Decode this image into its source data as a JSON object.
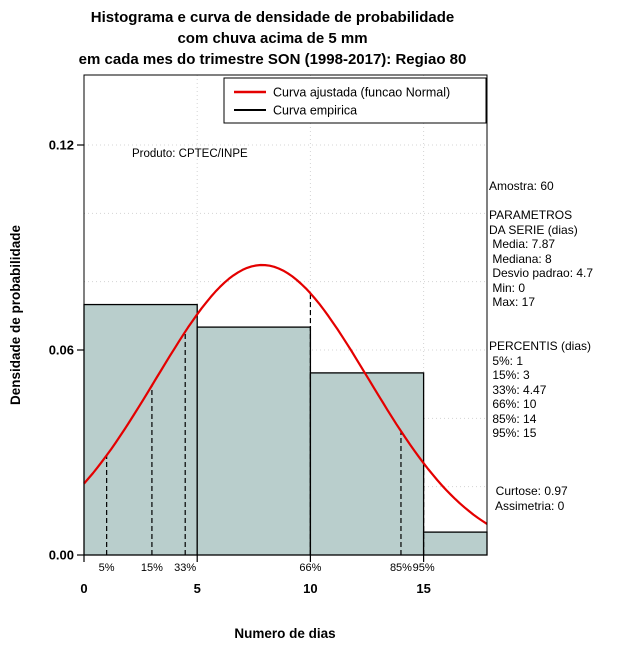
{
  "chart_data": {
    "type": "bar",
    "subtype": "histogram_with_normal_density_curve",
    "title_lines": [
      "Histograma e curva de densidade de probabilidade",
      "com chuva acima de 5 mm",
      "em cada mes do trimestre SON (1998-2017): Regiao 80"
    ],
    "xlabel": "Numero de dias",
    "ylabel": "Densidade de probabilidade",
    "xlim": [
      0,
      17.8
    ],
    "ylim": [
      0,
      0.14
    ],
    "x_ticks": [
      0,
      5,
      10,
      15
    ],
    "y_ticks": [
      0,
      0.06,
      0.12
    ],
    "y_tick_labels": [
      "0.00",
      "0.06",
      "0.12"
    ],
    "grid": {
      "x_lines": [
        0,
        5,
        10,
        15
      ],
      "y_step": 0.02,
      "color": "#d4d4d4"
    },
    "histogram": {
      "bin_edges": [
        0,
        5,
        10,
        15,
        17.8
      ],
      "densities": [
        0.0733,
        0.0667,
        0.0533,
        0.0067
      ],
      "fill": "#b9cecc",
      "stroke": "#000000"
    },
    "normal_curve": {
      "mean": 7.87,
      "sd": 4.7,
      "color": "#e40000"
    },
    "percentiles": [
      {
        "label": "5%",
        "x": 1
      },
      {
        "label": "15%",
        "x": 3
      },
      {
        "label": "33%",
        "x": 4.47
      },
      {
        "label": "66%",
        "x": 10
      },
      {
        "label": "85%",
        "x": 14
      },
      {
        "label": "95%",
        "x": 15
      }
    ],
    "legend": [
      {
        "label": "Curva ajustada (funcao Normal)",
        "color": "#e40000",
        "width": 2.5
      },
      {
        "label": "Curva empirica",
        "color": "#000000",
        "width": 2
      }
    ],
    "annotation": "Produto: CPTEC/INPE"
  },
  "stats_panel": {
    "lines": [
      "Amostra: 60",
      "",
      "PARAMETROS",
      "DA SERIE (dias)",
      " Media: 7.87",
      " Mediana: 8",
      " Desvio padrao: 4.7",
      " Min: 0",
      " Max: 17",
      "",
      "",
      "PERCENTIS (dias)",
      " 5%: 1",
      " 15%: 3",
      " 33%: 4.47",
      " 66%: 10",
      " 85%: 14",
      " 95%: 15",
      "",
      "",
      "",
      "  Curtose: 0.97",
      "  Assimetria: 0"
    ]
  }
}
